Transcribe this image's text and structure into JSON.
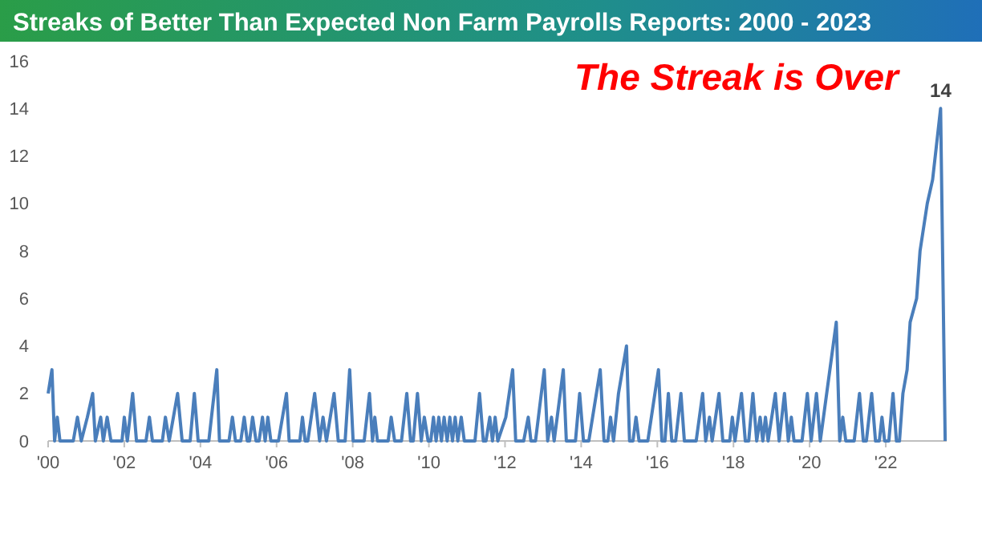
{
  "chart_data": {
    "type": "line",
    "title": "Streaks of Better Than Expected Non Farm Payrolls Reports: 2000 - 2023",
    "x": [
      2000.0,
      2000.1,
      2000.17,
      2000.24,
      2000.31,
      2000.66,
      2000.77,
      2000.87,
      2001.03,
      2001.17,
      2001.24,
      2001.38,
      2001.45,
      2001.55,
      2001.65,
      2001.94,
      2002.0,
      2002.08,
      2002.22,
      2002.32,
      2002.57,
      2002.66,
      2002.74,
      2003.0,
      2003.08,
      2003.18,
      2003.4,
      2003.52,
      2003.73,
      2003.84,
      2003.94,
      2004.22,
      2004.43,
      2004.5,
      2004.75,
      2004.84,
      2004.92,
      2005.06,
      2005.15,
      2005.23,
      2005.29,
      2005.37,
      2005.46,
      2005.54,
      2005.63,
      2005.7,
      2005.77,
      2005.85,
      2006.05,
      2006.26,
      2006.33,
      2006.61,
      2006.68,
      2006.75,
      2006.82,
      2007.0,
      2007.13,
      2007.22,
      2007.31,
      2007.51,
      2007.62,
      2007.8,
      2007.92,
      2008.01,
      2008.3,
      2008.44,
      2008.52,
      2008.58,
      2008.65,
      2008.93,
      2009.01,
      2009.1,
      2009.28,
      2009.42,
      2009.52,
      2009.59,
      2009.7,
      2009.8,
      2009.88,
      2009.98,
      2010.05,
      2010.12,
      2010.19,
      2010.26,
      2010.33,
      2010.4,
      2010.48,
      2010.55,
      2010.62,
      2010.69,
      2010.76,
      2010.85,
      2010.93,
      2011.21,
      2011.33,
      2011.43,
      2011.5,
      2011.6,
      2011.67,
      2011.74,
      2011.81,
      2012.02,
      2012.2,
      2012.28,
      2012.49,
      2012.61,
      2012.68,
      2012.8,
      2013.03,
      2013.12,
      2013.22,
      2013.29,
      2013.53,
      2013.61,
      2013.85,
      2013.96,
      2014.06,
      2014.2,
      2014.5,
      2014.6,
      2014.7,
      2014.77,
      2014.85,
      2014.98,
      2015.19,
      2015.27,
      2015.36,
      2015.44,
      2015.52,
      2015.75,
      2016.03,
      2016.12,
      2016.2,
      2016.29,
      2016.38,
      2016.48,
      2016.62,
      2016.71,
      2017.02,
      2017.19,
      2017.27,
      2017.37,
      2017.44,
      2017.62,
      2017.72,
      2017.9,
      2017.97,
      2018.04,
      2018.21,
      2018.31,
      2018.4,
      2018.51,
      2018.61,
      2018.7,
      2018.77,
      2018.84,
      2018.91,
      2019.1,
      2019.2,
      2019.34,
      2019.44,
      2019.52,
      2019.59,
      2019.8,
      2019.94,
      2020.04,
      2020.18,
      2020.28,
      2020.7,
      2020.79,
      2020.87,
      2020.95,
      2021.17,
      2021.31,
      2021.41,
      2021.49,
      2021.63,
      2021.73,
      2021.83,
      2021.9,
      2021.97,
      2022.08,
      2022.19,
      2022.28,
      2022.36,
      2022.45,
      2022.56,
      2022.64,
      2022.81,
      2022.9,
      2023.09,
      2023.23,
      2023.44,
      2023.56
    ],
    "series": [
      {
        "color": "#4a7ebb",
        "values": [
          2,
          3,
          0,
          1,
          0,
          0,
          1,
          0,
          1,
          2,
          0,
          1,
          0,
          1,
          0,
          0,
          1,
          0,
          2,
          0,
          0,
          1,
          0,
          0,
          1,
          0,
          2,
          0,
          0,
          2,
          0,
          0,
          3,
          0,
          0,
          1,
          0,
          0,
          1,
          0,
          0,
          1,
          0,
          0,
          1,
          0,
          1,
          0,
          0,
          2,
          0,
          0,
          1,
          0,
          0,
          2,
          0,
          1,
          0,
          2,
          0,
          0,
          3,
          0,
          0,
          2,
          0,
          1,
          0,
          0,
          1,
          0,
          0,
          2,
          0,
          0,
          2,
          0,
          1,
          0,
          0,
          1,
          0,
          1,
          0,
          1,
          0,
          1,
          0,
          1,
          0,
          1,
          0,
          0,
          2,
          0,
          0,
          1,
          0,
          1,
          0,
          1,
          3,
          0,
          0,
          1,
          0,
          0,
          3,
          0,
          1,
          0,
          3,
          0,
          0,
          2,
          0,
          0,
          3,
          0,
          0,
          1,
          0,
          2,
          4,
          0,
          0,
          1,
          0,
          0,
          3,
          0,
          0,
          2,
          0,
          0,
          2,
          0,
          0,
          2,
          0,
          1,
          0,
          2,
          0,
          0,
          1,
          0,
          2,
          0,
          0,
          2,
          0,
          1,
          0,
          1,
          0,
          2,
          0,
          2,
          0,
          1,
          0,
          0,
          2,
          0,
          2,
          0,
          5,
          0,
          1,
          0,
          0,
          2,
          0,
          0,
          2,
          0,
          0,
          1,
          0,
          0,
          2,
          0,
          0,
          2,
          3,
          5,
          6,
          8,
          10,
          11,
          14,
          0
        ]
      }
    ],
    "xlim": [
      2000,
      2023.6
    ],
    "xticks": [
      {
        "value": 2000,
        "label": "'00"
      },
      {
        "value": 2002,
        "label": "'02"
      },
      {
        "value": 2004,
        "label": "'04"
      },
      {
        "value": 2006,
        "label": "'06"
      },
      {
        "value": 2008,
        "label": "'08"
      },
      {
        "value": 2010,
        "label": "'10"
      },
      {
        "value": 2012,
        "label": "'12"
      },
      {
        "value": 2014,
        "label": "'14"
      },
      {
        "value": 2016,
        "label": "'16"
      },
      {
        "value": 2018,
        "label": "'18"
      },
      {
        "value": 2020,
        "label": "'20"
      },
      {
        "value": 2022,
        "label": "'22"
      }
    ],
    "ylim": [
      0,
      16
    ],
    "yticks": [
      0,
      2,
      4,
      6,
      8,
      10,
      12,
      14,
      16
    ],
    "grid": false,
    "annotations": [
      "The Streak is Over",
      {
        "text": "14",
        "x": 2023.44,
        "y": 14
      }
    ]
  }
}
